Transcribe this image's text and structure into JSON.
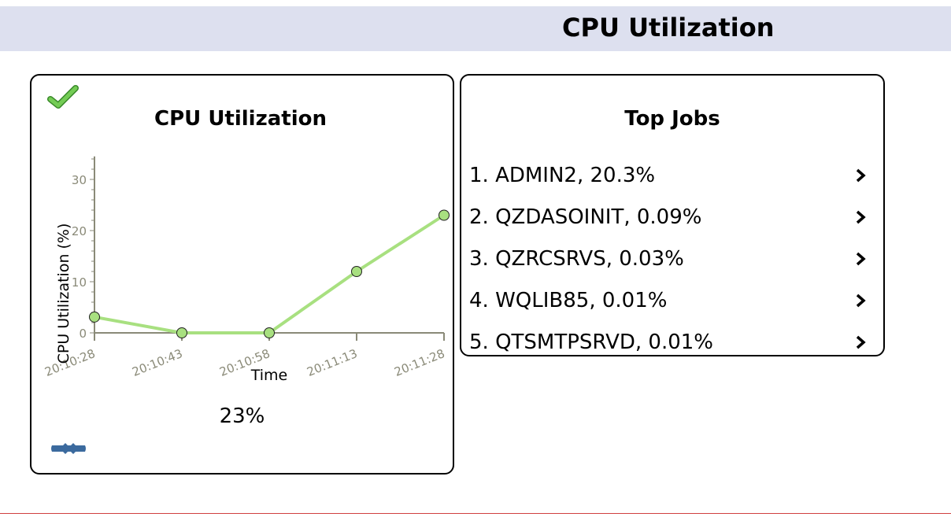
{
  "header": {
    "title": "CPU Utilization"
  },
  "cpu_card": {
    "title": "CPU Utilization",
    "current_value": "23%",
    "status_icon": "check-icon",
    "status_color": "#5cb83a"
  },
  "chart_data": {
    "type": "line",
    "title": "CPU Utilization",
    "xlabel": "Time",
    "ylabel": "CPU Utilization (%)",
    "x": [
      "20:10:28",
      "20:10:43",
      "20:10:58",
      "20:11:13",
      "20:11:28"
    ],
    "series": [
      {
        "name": "CPU Utilization",
        "values": [
          3.1,
          0,
          0,
          12,
          23
        ],
        "color": "#a8e080"
      }
    ],
    "yticks": [
      0,
      10,
      20,
      30
    ],
    "ylim": [
      0,
      34.5
    ],
    "grid": false
  },
  "top_jobs": {
    "title": "Top Jobs",
    "items": [
      {
        "label": "1. ADMIN2, 20.3%"
      },
      {
        "label": "2. QZDASOINIT, 0.09%"
      },
      {
        "label": "3. QZRCSRVS, 0.03%"
      },
      {
        "label": "4. WQLIB85, 0.01%"
      },
      {
        "label": "5. QTSMTPSRVD, 0.01%"
      }
    ]
  }
}
